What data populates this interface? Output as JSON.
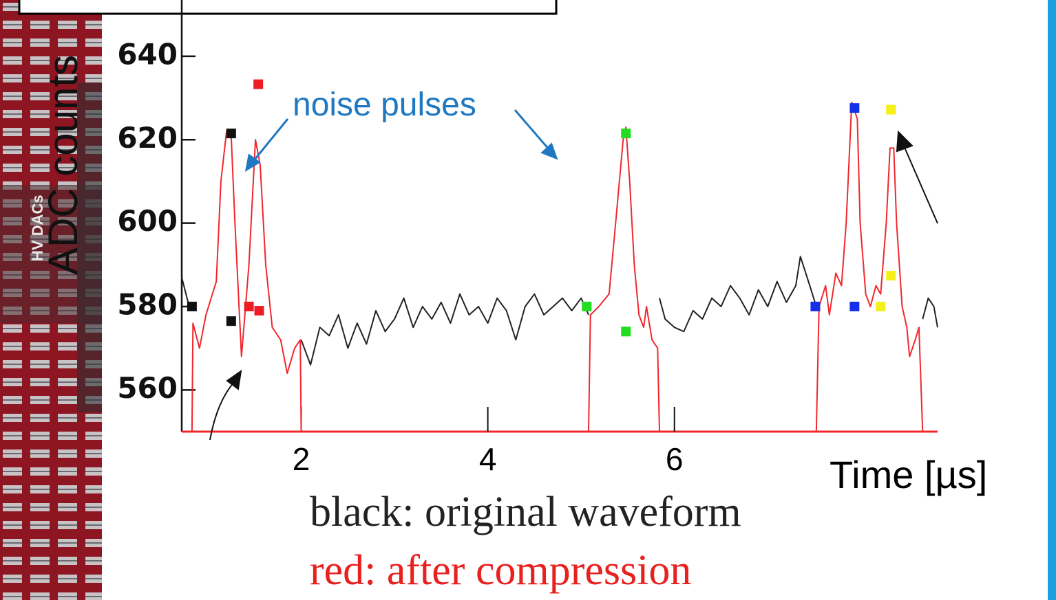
{
  "chart_data": {
    "type": "line",
    "xlabel": "Time [µs]",
    "ylabel": "ADC counts",
    "annotation": "noise pulses",
    "legend_lines": [
      {
        "text": "black: original waveform",
        "color": "#222222"
      },
      {
        "text": "red: after compression",
        "color": "#e8201e"
      }
    ],
    "board_label": "HV DACs",
    "xlim": [
      0.72,
      8.82
    ],
    "ylim": [
      550,
      653.5
    ],
    "xticks": [
      2,
      4,
      6
    ],
    "yticks": [
      560,
      580,
      600,
      620,
      640
    ],
    "series": [
      {
        "color": "#222222",
        "x": [
          0.72,
          0.8,
          null,
          2.0,
          2.1,
          2.2,
          2.3,
          2.4,
          2.5,
          2.6,
          2.7,
          2.8,
          2.9,
          3.0,
          3.1,
          3.2,
          3.3,
          3.4,
          3.5,
          3.6,
          3.7,
          3.8,
          3.9,
          4.0,
          4.1,
          4.2,
          4.3,
          4.4,
          4.5,
          4.6,
          4.7,
          4.8,
          4.9,
          5.0,
          5.08,
          null,
          5.84,
          5.9,
          6.0,
          6.1,
          6.2,
          6.3,
          6.4,
          6.5,
          6.6,
          6.7,
          6.8,
          6.9,
          7.0,
          7.1,
          7.2,
          7.3,
          7.35,
          7.45,
          7.52,
          null,
          8.66,
          8.72,
          8.78,
          8.82
        ],
        "values": [
          587,
          580,
          null,
          572,
          566,
          575,
          573,
          578,
          570,
          576,
          571,
          579,
          574,
          577,
          582,
          575,
          580,
          577,
          581,
          576,
          583,
          578,
          580,
          576,
          582,
          579,
          572,
          580,
          583,
          578,
          580,
          582,
          579,
          582,
          578,
          null,
          582,
          577,
          575,
          574,
          579,
          577,
          582,
          580,
          585,
          582,
          578,
          584,
          580,
          586,
          581,
          585,
          592,
          585,
          580,
          null,
          577,
          582,
          580,
          575
        ]
      },
      {
        "color": "#f0282d",
        "x": [
          0.83,
          0.84,
          0.91,
          0.98,
          1.09,
          1.14,
          1.2,
          1.25,
          1.29,
          1.36,
          1.44,
          1.51,
          1.56,
          1.62,
          1.69,
          1.78,
          1.85,
          1.93,
          1.99,
          2.0,
          null,
          5.08,
          5.1,
          5.19,
          5.3,
          5.37,
          5.45,
          5.48,
          5.52,
          5.57,
          5.62,
          5.67,
          5.7,
          5.76,
          5.82,
          5.84,
          null,
          7.52,
          7.55,
          7.62,
          7.66,
          7.73,
          7.79,
          7.84,
          7.9,
          7.96,
          7.99,
          8.05,
          8.1,
          8.16,
          8.21,
          8.27,
          8.31,
          8.35,
          8.38,
          8.44,
          8.49,
          8.52,
          8.58,
          8.62,
          8.66
        ],
        "values": [
          550,
          576,
          570,
          578,
          586,
          610,
          622,
          621,
          600,
          568,
          590,
          620,
          614,
          590,
          575,
          572,
          564,
          570,
          572,
          550,
          null,
          550,
          578,
          580,
          583,
          600,
          620,
          623,
          610,
          590,
          578,
          575,
          580,
          572,
          570,
          550,
          null,
          550,
          580,
          585,
          578,
          588,
          585,
          600,
          629,
          625,
          600,
          583,
          580,
          585,
          583,
          600,
          618,
          618,
          600,
          580,
          575,
          568,
          572,
          575,
          550
        ]
      }
    ],
    "markers": [
      {
        "color": "#111111",
        "x": [
          1.25,
          0.83,
          1.25
        ],
        "values": [
          621.5,
          580,
          576.5
        ]
      },
      {
        "color": "#ee1c25",
        "x": [
          1.54,
          1.44,
          1.55
        ],
        "values": [
          633.3,
          580,
          579
        ]
      },
      {
        "color": "#22dd22",
        "x": [
          5.06,
          5.48,
          5.48
        ],
        "values": [
          580,
          621.5,
          574
        ]
      },
      {
        "color": "#1530e8",
        "x": [
          7.51,
          7.93,
          7.93
        ],
        "values": [
          580,
          627.6,
          580
        ]
      },
      {
        "color": "#f5f01a",
        "x": [
          8.32,
          8.32,
          8.21
        ],
        "values": [
          627.2,
          587.4,
          580
        ]
      }
    ]
  }
}
